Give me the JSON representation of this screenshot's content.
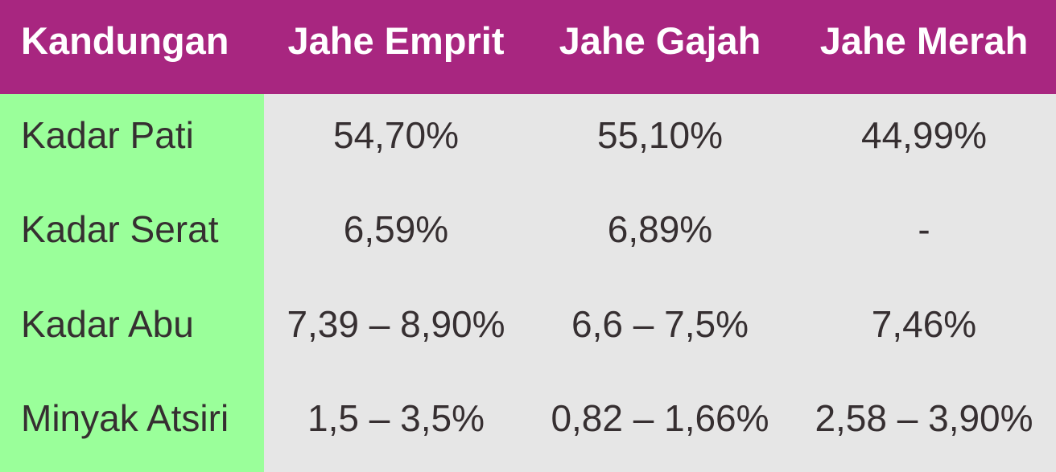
{
  "chart_data": {
    "type": "table",
    "title": "",
    "columns": [
      "Kandungan",
      "Jahe Emprit",
      "Jahe Gajah",
      "Jahe Merah"
    ],
    "rows": [
      {
        "label": "Kadar Pati",
        "values": [
          "54,70%",
          "55,10%",
          "44,99%"
        ]
      },
      {
        "label": "Kadar Serat",
        "values": [
          "6,59%",
          "6,89%",
          "-"
        ]
      },
      {
        "label": "Kadar Abu",
        "values": [
          "7,39 – 8,90%",
          "6,6 – 7,5%",
          "7,46%"
        ]
      },
      {
        "label": "Minyak Atsiri",
        "values": [
          "1,5 – 3,5%",
          "0,82 – 1,66%",
          "2,58 – 3,90%"
        ]
      }
    ],
    "colors": {
      "header_bg": "#A82680",
      "header_text": "#FFFFFF",
      "label_column_bg": "#9AFF9A",
      "value_cells_bg": "#E6E6E6",
      "body_text": "#362F31"
    }
  }
}
